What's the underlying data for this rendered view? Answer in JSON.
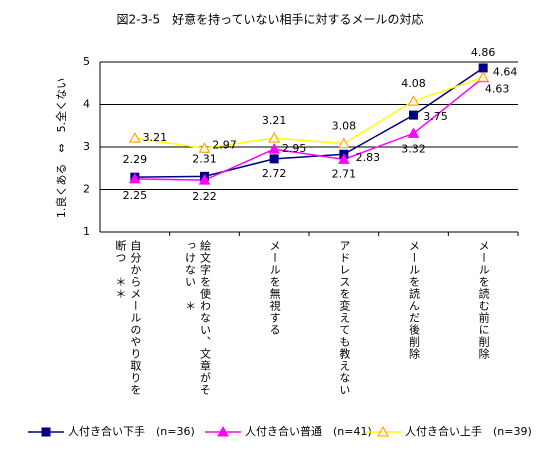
{
  "chart_data": {
    "type": "line",
    "title": "図2-3-5　好意を持っていない相手に対するメールの対応",
    "y_label": "1.良くある　⇔　5.全くない",
    "categories": [
      "自分からメールのやり取りを断つ　＊＊",
      "絵文字を使わない、文章がそっけない　＊",
      "メールを無視する",
      "アドレスを変えても教えない",
      "メールを読んだ後削除",
      "メールを読む前に削除"
    ],
    "series": [
      {
        "name": "人付き合い下手　(n=36)",
        "color": "#000080",
        "marker": "square",
        "values": [
          2.29,
          2.31,
          2.72,
          2.83,
          3.75,
          4.86
        ]
      },
      {
        "name": "人付き合い普通　(n=41)",
        "color": "#ff00ff",
        "marker": "triangle",
        "values": [
          2.25,
          2.22,
          2.95,
          2.71,
          3.32,
          4.63
        ]
      },
      {
        "name": "人付き合い上手　(n=39)",
        "color": "#ffff00",
        "marker": "triangle-open",
        "values": [
          3.21,
          2.97,
          3.21,
          3.08,
          4.08,
          4.64
        ]
      }
    ],
    "ylim": [
      1,
      5
    ],
    "yticks": [
      1,
      2,
      3,
      4,
      5
    ],
    "grid": true,
    "legend": "bottom"
  }
}
